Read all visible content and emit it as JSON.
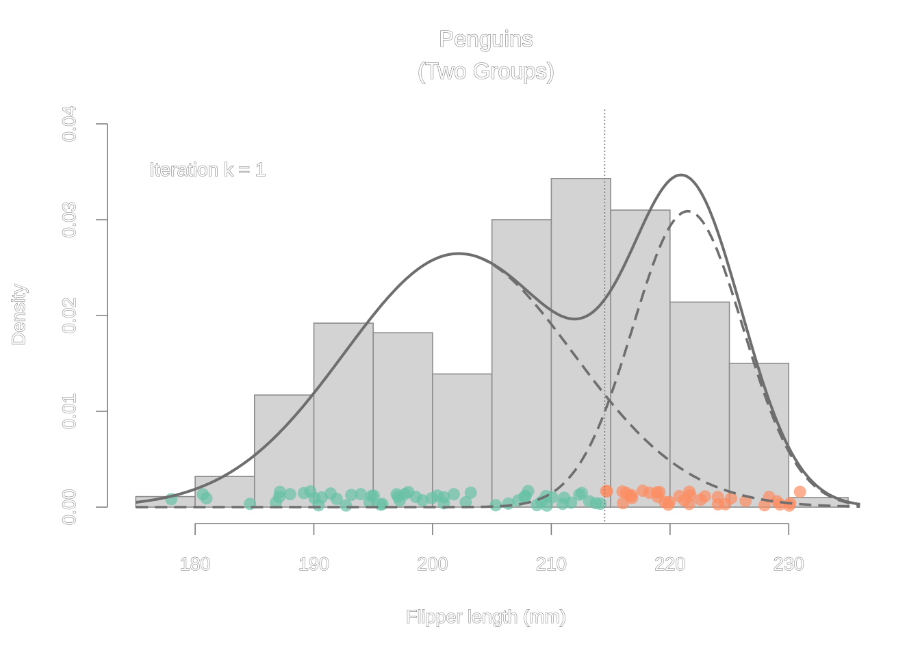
{
  "chart_data": {
    "type": "bar",
    "title_lines": [
      "Penguins",
      "(Two Groups)"
    ],
    "xlabel": "Flipper length (mm)",
    "ylabel": "Density",
    "annotation": "Iteration k = 1",
    "xlim": [
      172.5,
      236.5
    ],
    "ylim": [
      0,
      0.04
    ],
    "x_ticks": [
      180,
      190,
      200,
      210,
      220,
      230
    ],
    "y_ticks": [
      "0.00",
      "0.01",
      "0.02",
      "0.03",
      "0.04"
    ],
    "histogram": {
      "bin_edges": [
        175,
        180,
        185,
        190,
        195,
        200,
        205,
        210,
        215,
        220,
        225,
        230,
        235
      ],
      "density": [
        0.0011,
        0.0032,
        0.0117,
        0.0192,
        0.0182,
        0.0139,
        0.03,
        0.0343,
        0.031,
        0.0214,
        0.015,
        0.001
      ]
    },
    "mixture": {
      "components": [
        {
          "weight": 0.64,
          "mean": 202.2,
          "sd": 9.65
        },
        {
          "weight": 0.36,
          "mean": 221.5,
          "sd": 4.65
        }
      ]
    },
    "decision_boundary": 214.5,
    "points": {
      "group1": [
        178,
        181,
        181,
        185,
        187,
        187,
        187,
        188,
        189,
        190,
        190,
        190,
        191,
        191,
        192,
        193,
        193,
        194,
        195,
        195,
        195,
        196,
        196,
        197,
        197,
        197,
        198,
        198,
        199,
        199,
        200,
        200,
        201,
        201,
        202,
        203,
        203,
        205,
        206,
        207,
        208,
        208,
        208,
        209,
        209,
        210,
        210,
        210,
        211,
        211,
        212,
        212,
        213,
        213,
        214,
        214
      ],
      "group2": [
        215,
        215,
        216,
        216,
        216,
        217,
        217,
        217,
        218,
        218,
        219,
        219,
        219,
        220,
        220,
        220,
        221,
        221,
        222,
        222,
        222,
        223,
        223,
        224,
        224,
        225,
        225,
        226,
        228,
        228,
        229,
        229,
        230,
        230,
        231
      ]
    },
    "colors": {
      "bar_fill": "#d3d3d3",
      "bar_stroke": "#8c8c8c",
      "curve": "#6e6e6e",
      "group1": "#66c2a5",
      "group2": "#fc8d62",
      "axis": "#7a7a7a"
    },
    "grid": false
  }
}
